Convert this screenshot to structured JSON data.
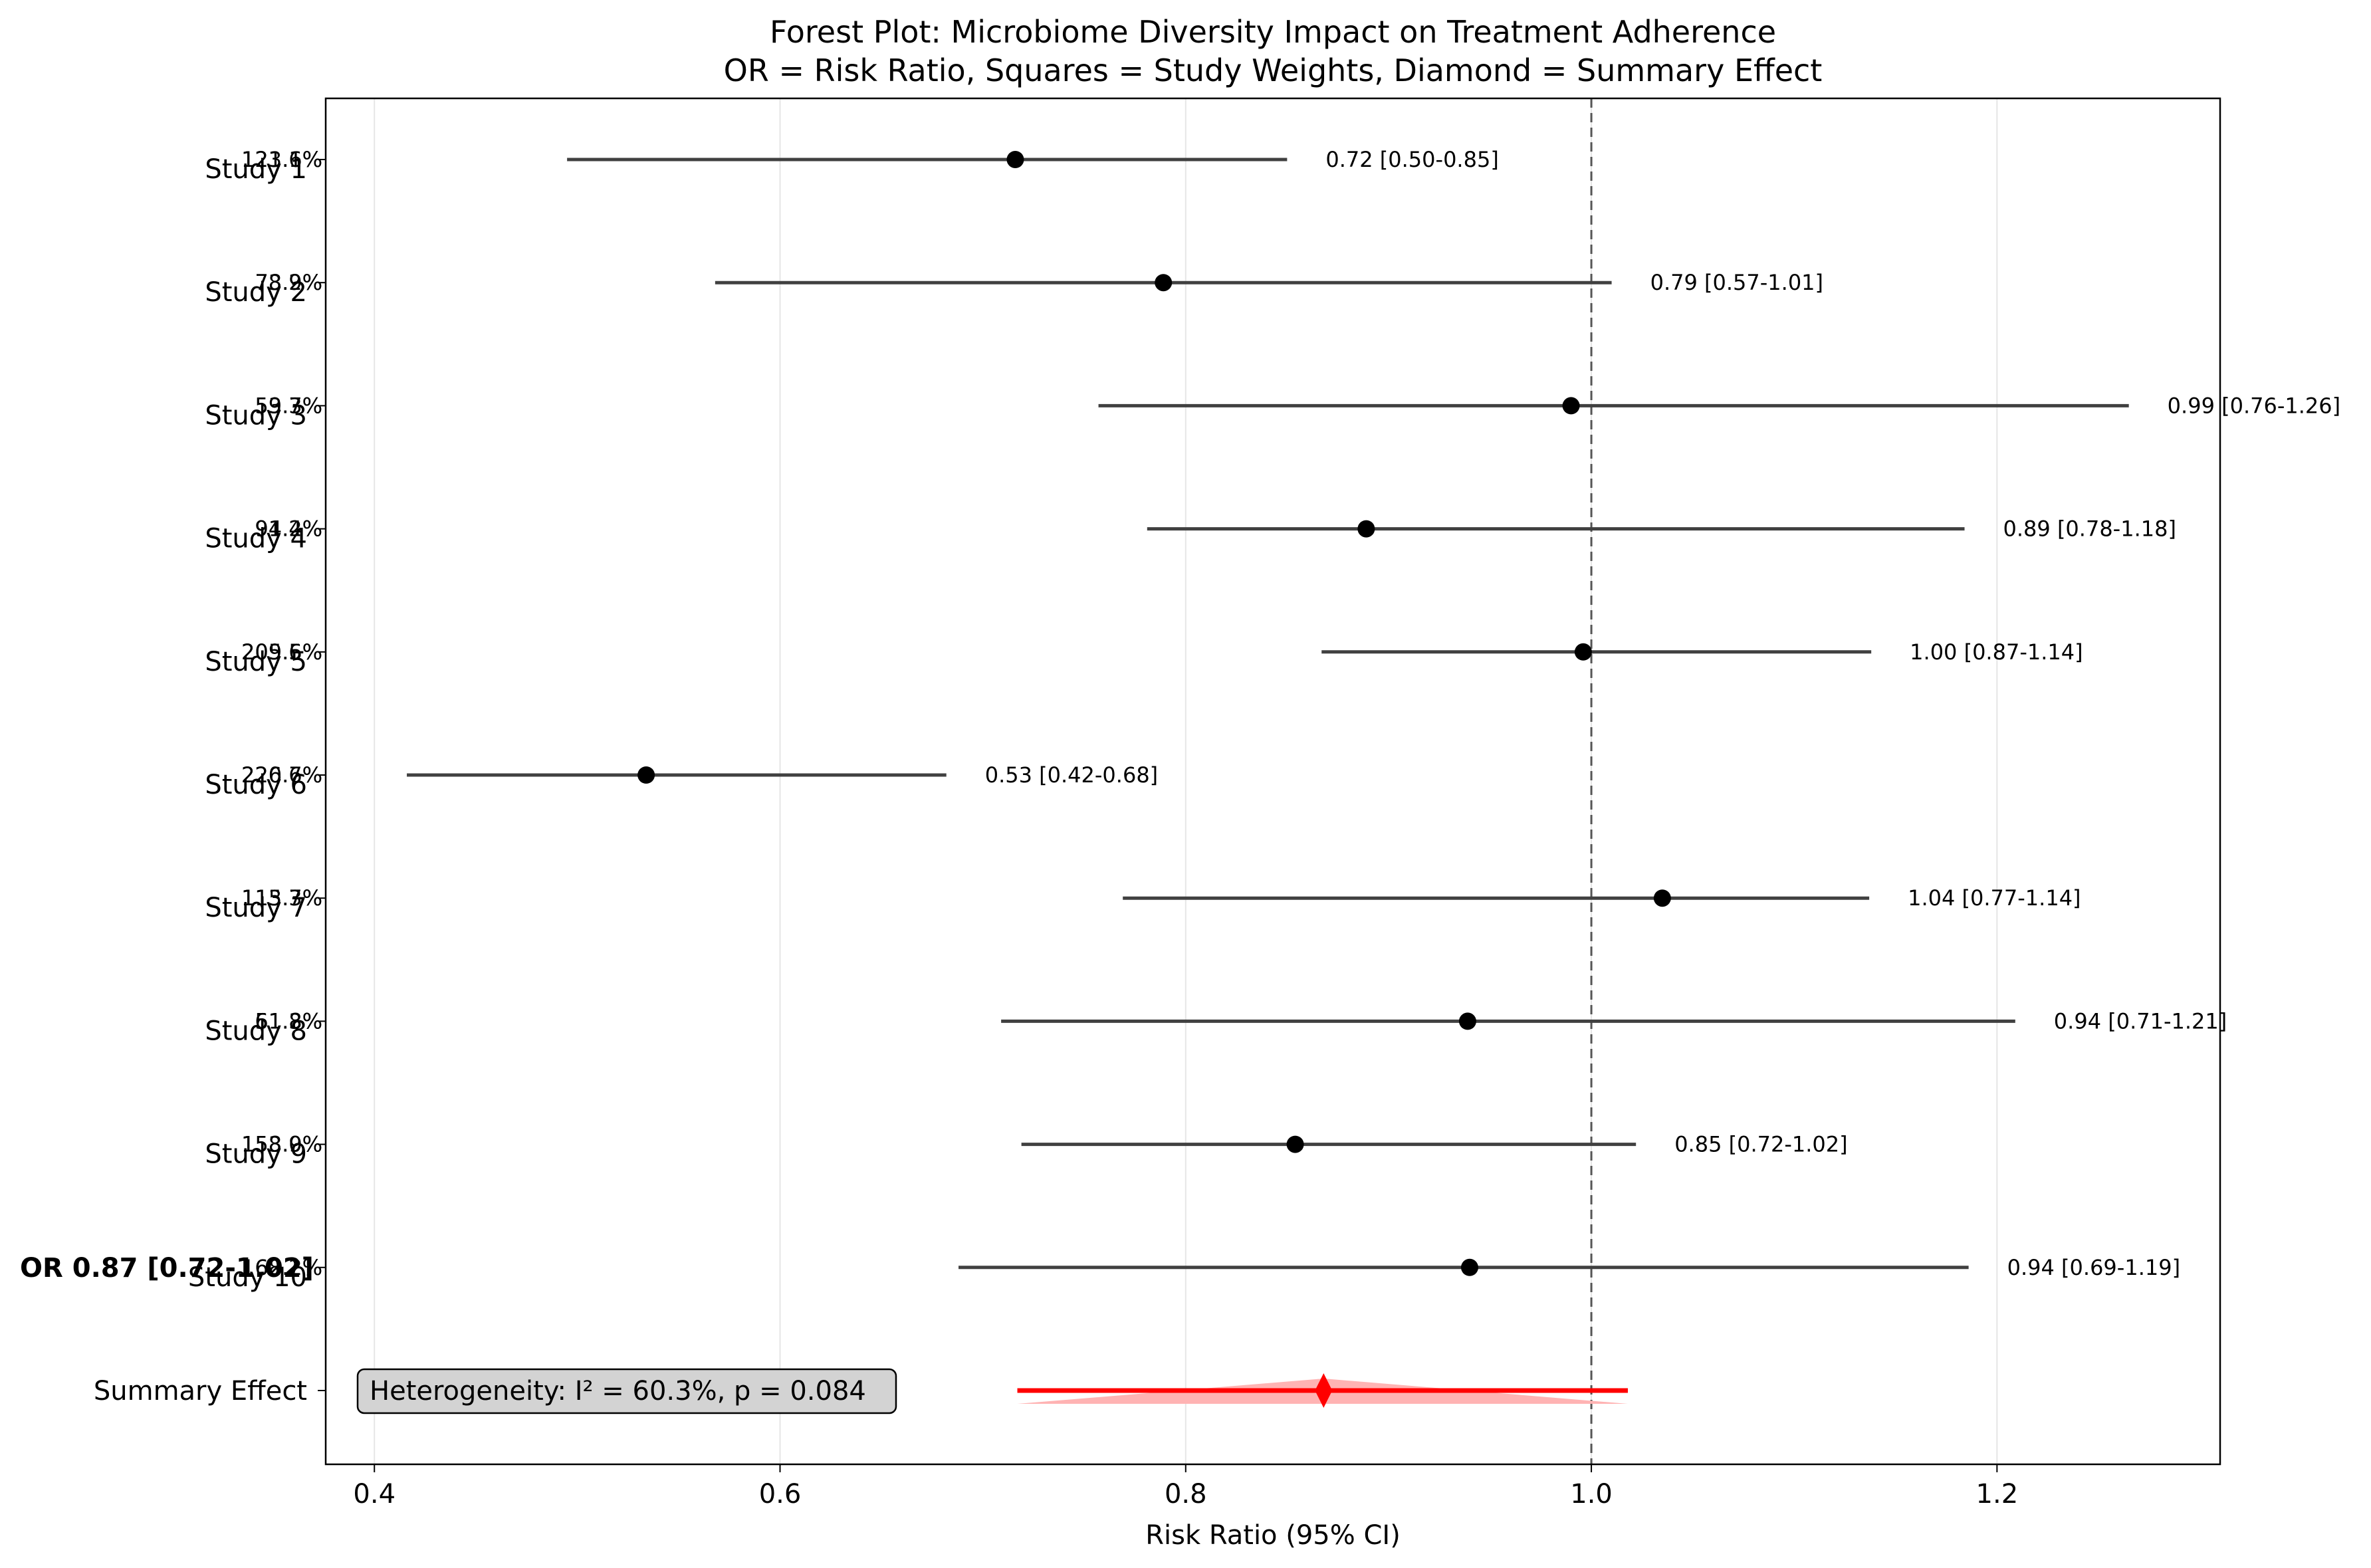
{
  "chart_data": {
    "type": "forest",
    "title_line1": "Forest Plot: Microbiome Diversity Impact on Treatment Adherence",
    "title_line2": "OR = Risk Ratio, Squares = Study Weights, Diamond = Summary Effect",
    "xlabel": "Risk Ratio (95% CI)",
    "xlim": [
      0.376,
      1.31
    ],
    "xticks": [
      {
        "value": 0.4,
        "label": "0.4"
      },
      {
        "value": 0.6,
        "label": "0.6"
      },
      {
        "value": 0.8,
        "label": "0.8"
      },
      {
        "value": 1.0,
        "label": "1.0"
      },
      {
        "value": 1.2,
        "label": "1.2"
      }
    ],
    "reference_line": 1.0,
    "grid": "x",
    "studies": [
      {
        "name": "Study 1",
        "estimate": 0.716,
        "lower": 0.495,
        "upper": 0.85,
        "ci_label": "0.72 [0.50-0.85]",
        "weight_label": "123.1%",
        "weight_label_2": "121.6%"
      },
      {
        "name": "Study 2",
        "estimate": 0.789,
        "lower": 0.568,
        "upper": 1.01,
        "ci_label": "0.79 [0.57-1.01]",
        "weight_label": "73.2%",
        "weight_label_2": "78.9%"
      },
      {
        "name": "Study 3",
        "estimate": 0.99,
        "lower": 0.757,
        "upper": 1.265,
        "ci_label": "0.99 [0.76-1.26]",
        "weight_label": "59.7%",
        "weight_label_2": "53.3%"
      },
      {
        "name": "Study 4",
        "estimate": 0.889,
        "lower": 0.781,
        "upper": 1.184,
        "ci_label": "0.89 [0.78-1.18]",
        "weight_label": "94.2%",
        "weight_label_2": "91.4%"
      },
      {
        "name": "Study 5",
        "estimate": 0.996,
        "lower": 0.867,
        "upper": 1.138,
        "ci_label": "1.00 [0.87-1.14]",
        "weight_label": "209.6%",
        "weight_label_2": "205.5%"
      },
      {
        "name": "Study 6",
        "estimate": 0.534,
        "lower": 0.416,
        "upper": 0.682,
        "ci_label": "0.53 [0.42-0.68]",
        "weight_label": "220.7%",
        "weight_label_2": "226.6%"
      },
      {
        "name": "Study 7",
        "estimate": 1.035,
        "lower": 0.769,
        "upper": 1.137,
        "ci_label": "1.04 [0.77-1.14]",
        "weight_label": "113.7%",
        "weight_label_2": "115.3%"
      },
      {
        "name": "Study 8",
        "estimate": 0.939,
        "lower": 0.709,
        "upper": 1.209,
        "ci_label": "0.94 [0.71-1.21]",
        "weight_label": "51.8%",
        "weight_label_2": "61.3%"
      },
      {
        "name": "Study 9",
        "estimate": 0.854,
        "lower": 0.719,
        "upper": 1.022,
        "ci_label": "0.85 [0.72-1.02]",
        "weight_label": "158.9%",
        "weight_label_2": "153.0%"
      },
      {
        "name": "Study 10",
        "estimate": 0.94,
        "lower": 0.688,
        "upper": 1.186,
        "ci_label": "0.94 [0.69-1.19]",
        "weight_label": "162.2%",
        "weight_label_2": "168.2%"
      }
    ],
    "summary": {
      "name": "Summary Effect",
      "estimate": 0.868,
      "lower": 0.717,
      "upper": 1.018,
      "label": "OR 0.87 [0.72-1.02]",
      "color": "#ff0000",
      "band_color": "#ffb3b3"
    },
    "annotation": "Heterogeneity: I² = 60.3%, p = 0.084",
    "marker_color": "#000000",
    "ci_color": "#404040",
    "reference_color": "#555555",
    "grid_color": "#e6e6e6",
    "annotation_bg": "#d3d3d3"
  }
}
